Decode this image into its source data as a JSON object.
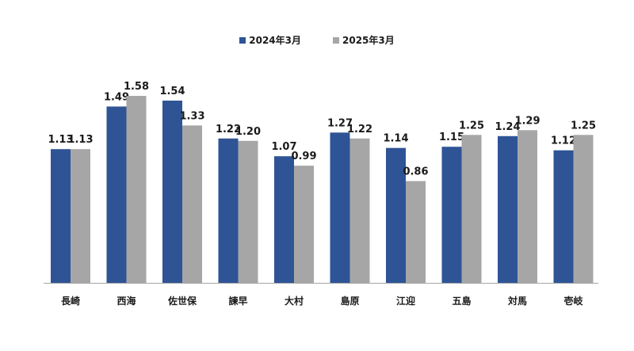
{
  "chart_data": {
    "type": "bar",
    "categories": [
      "長崎",
      "西海",
      "佐世保",
      "諫早",
      "大村",
      "島原",
      "江迎",
      "五島",
      "対馬",
      "壱岐"
    ],
    "series": [
      {
        "name": "2024年3月",
        "color": "#2e5496",
        "values": [
          1.13,
          1.49,
          1.54,
          1.22,
          1.07,
          1.27,
          1.14,
          1.15,
          1.24,
          1.12
        ],
        "labels": [
          "1.13",
          "1.49",
          "1.54",
          "1.22",
          "1.07",
          "1.27",
          "1.14",
          "1.15",
          "1.24",
          "1.12"
        ]
      },
      {
        "name": "2025年3月",
        "color": "#a6a6a6",
        "values": [
          1.13,
          1.58,
          1.33,
          1.2,
          0.99,
          1.22,
          0.86,
          1.25,
          1.29,
          1.25
        ],
        "labels": [
          "1.13",
          "1.58",
          "1.33",
          "1.20",
          "0.99",
          "1.22",
          "0.86",
          "1.25",
          "1.29",
          "1.25"
        ]
      }
    ],
    "ylim": [
      0,
      1.58
    ],
    "grid": false,
    "legend_position": "top-center",
    "axis_color": "#a6a6a6"
  }
}
